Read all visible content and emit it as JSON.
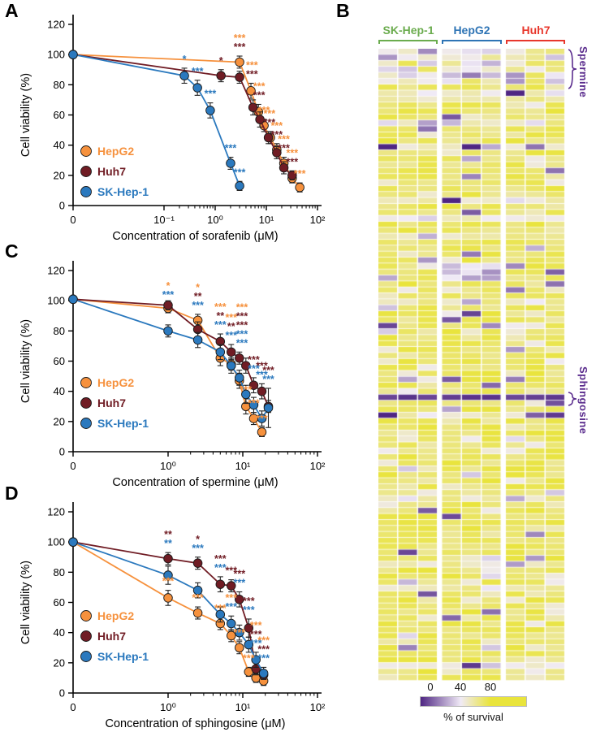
{
  "panel_letters": {
    "a": "A",
    "b": "B",
    "c": "C",
    "d": "D"
  },
  "colors": {
    "hepg2": "#F6913D",
    "huh7": "#701C24",
    "skhep1": "#2B79BE",
    "annotation_purple": "#5B2D8E",
    "axis": "#000000"
  },
  "chart_data": [
    {
      "id": "A",
      "type": "line",
      "xlabel": "Concentration of sorafenib (μM)",
      "ylabel": "Cell viability (%)",
      "x_scale": "log-with-zero-break",
      "x_decades": [
        -1,
        2
      ],
      "x_ticks": [
        "0",
        "10⁻¹",
        "10⁰",
        "10¹",
        "10²"
      ],
      "ylim": [
        0,
        120
      ],
      "y_ticks": [
        0,
        20,
        40,
        60,
        80,
        100,
        120
      ],
      "legend_pos": [
        104,
        186
      ],
      "series": [
        {
          "name": "HepG2",
          "color_key": "hepg2",
          "x": [
            0,
            3,
            5,
            7,
            9,
            12,
            16,
            22,
            32,
            45
          ],
          "y": [
            100,
            95,
            76,
            62,
            53,
            45,
            37,
            28,
            18,
            12
          ],
          "err": [
            3,
            4,
            5,
            5,
            4,
            4,
            4,
            4,
            3,
            3
          ],
          "sig": [
            "",
            "***",
            "***",
            "***",
            "***",
            "***",
            "***",
            "***",
            "***",
            "***"
          ]
        },
        {
          "name": "Huh7",
          "color_key": "huh7",
          "x": [
            0,
            1.3,
            3,
            5.5,
            7.5,
            11,
            16,
            22,
            32
          ],
          "y": [
            100,
            86,
            85,
            65,
            57,
            45,
            35,
            25,
            20
          ],
          "err": [
            3,
            4,
            4,
            5,
            5,
            4,
            4,
            4,
            3
          ],
          "sig": [
            "",
            "*",
            "***",
            "***",
            "***",
            "***",
            "***",
            "***",
            "***"
          ]
        },
        {
          "name": "SK-Hep-1",
          "color_key": "skhep1",
          "x": [
            0,
            0.25,
            0.45,
            0.8,
            2,
            3
          ],
          "y": [
            100,
            86,
            78,
            63,
            28,
            13
          ],
          "err": [
            3,
            5,
            5,
            5,
            4,
            3
          ],
          "sig": [
            "",
            "*",
            "***",
            "***",
            "***",
            "***"
          ]
        }
      ]
    },
    {
      "id": "B",
      "type": "heatmap",
      "col_groups": [
        {
          "label": "SK-Hep-1",
          "color": "#6BAC4E",
          "cols": 3
        },
        {
          "label": "HepG2",
          "color": "#2E74B5",
          "cols": 3
        },
        {
          "label": "Huh7",
          "color": "#E8372C",
          "cols": 3
        }
      ],
      "rows": 106,
      "band_rows": 6,
      "special_row": 58,
      "seed": 11,
      "row_annotations": [
        {
          "label": "Spermine",
          "rows": [
            0,
            5
          ]
        },
        {
          "label": "Sphingosine",
          "rows": [
            58,
            58
          ]
        }
      ],
      "colorbar": {
        "ticks": [
          0,
          40,
          80
        ],
        "label": "% of survival",
        "min_color": "#4F2683",
        "mid_color": "#F0EAF6",
        "max_color": "#E9E43C"
      }
    },
    {
      "id": "C",
      "type": "line",
      "xlabel": "Concentration of spermine (μM)",
      "ylabel": "Cell viability (%)",
      "x_scale": "log-with-zero-break",
      "x_decades": [
        0,
        2
      ],
      "x_ticks": [
        "0",
        "10⁰",
        "10¹",
        "10²"
      ],
      "ylim": [
        0,
        120
      ],
      "y_ticks": [
        0,
        20,
        40,
        60,
        80,
        100,
        120
      ],
      "legend_pos": [
        104,
        168
      ],
      "series": [
        {
          "name": "HepG2",
          "color_key": "hepg2",
          "x": [
            0,
            1,
            2.5,
            5,
            7,
            9,
            11,
            14,
            18
          ],
          "y": [
            101,
            95,
            87,
            62,
            58,
            47,
            30,
            22,
            13
          ],
          "err": [
            4,
            3,
            4,
            5,
            4,
            5,
            5,
            4,
            3
          ],
          "sig": [
            "",
            "*",
            "*",
            "***",
            "***",
            "***",
            "***",
            "***",
            "***"
          ]
        },
        {
          "name": "Huh7",
          "color_key": "huh7",
          "x": [
            0,
            1,
            2.5,
            5,
            7,
            9,
            11,
            14,
            18,
            22
          ],
          "y": [
            101,
            97,
            81,
            73,
            66,
            62,
            57,
            44,
            40,
            30
          ],
          "err": [
            3,
            3,
            5,
            5,
            5,
            4,
            5,
            5,
            5,
            4
          ],
          "sig": [
            "",
            "",
            "**",
            "**",
            "**",
            "***",
            "***",
            "***",
            "***",
            "***"
          ]
        },
        {
          "name": "SK-Hep-1",
          "color_key": "skhep1",
          "x": [
            0,
            1,
            2.5,
            5,
            7,
            9,
            11,
            14,
            18,
            22
          ],
          "y": [
            101,
            80,
            74,
            66,
            57,
            49,
            38,
            31,
            22,
            29
          ],
          "err": [
            4,
            4,
            5,
            5,
            5,
            5,
            6,
            5,
            5,
            13
          ],
          "sig": [
            "",
            "***",
            "***",
            "***",
            "***",
            "***",
            "***",
            "***",
            "***",
            "***"
          ]
        }
      ]
    },
    {
      "id": "D",
      "type": "line",
      "xlabel": "Concentration of sphingosine (μM)",
      "ylabel": "Cell viability (%)",
      "x_scale": "log-with-zero-break",
      "x_decades": [
        0,
        2
      ],
      "x_ticks": [
        "0",
        "10⁰",
        "10¹",
        "10²"
      ],
      "ylim": [
        0,
        120
      ],
      "y_ticks": [
        0,
        20,
        40,
        60,
        80,
        100,
        120
      ],
      "legend_pos": [
        104,
        158
      ],
      "series": [
        {
          "name": "HepG2",
          "color_key": "hepg2",
          "x": [
            0,
            1,
            2.5,
            5,
            7,
            9,
            12,
            15,
            19
          ],
          "y": [
            100,
            63,
            53,
            46,
            38,
            30,
            14,
            10,
            8
          ],
          "err": [
            3,
            5,
            4,
            4,
            4,
            4,
            3,
            3,
            3
          ],
          "sig": [
            "",
            "***",
            "***",
            "***",
            "***",
            "***",
            "***",
            "***",
            "***"
          ]
        },
        {
          "name": "Huh7",
          "color_key": "huh7",
          "x": [
            0,
            1,
            2.5,
            5,
            7,
            9,
            12,
            15,
            19
          ],
          "y": [
            100,
            89,
            86,
            72,
            71,
            62,
            43,
            16,
            12
          ],
          "err": [
            3,
            4,
            4,
            5,
            4,
            5,
            6,
            4,
            3
          ],
          "sig": [
            "",
            "**",
            "*",
            "***",
            "***",
            "***",
            "***",
            "***",
            "***"
          ]
        },
        {
          "name": "SK-Hep-1",
          "color_key": "skhep1",
          "x": [
            0,
            1,
            2.5,
            5,
            7,
            9,
            12,
            15,
            19
          ],
          "y": [
            100,
            78,
            68,
            52,
            46,
            40,
            32,
            22,
            13
          ],
          "err": [
            3,
            6,
            5,
            5,
            5,
            5,
            5,
            5,
            4
          ],
          "sig": [
            "",
            "**",
            "***",
            "***",
            "***",
            "***",
            "***",
            "***",
            "***"
          ]
        }
      ]
    }
  ]
}
